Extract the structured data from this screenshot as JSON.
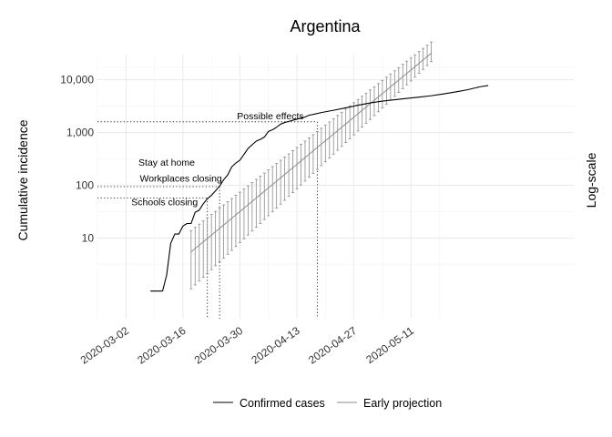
{
  "chart_data": {
    "type": "line",
    "title": "Argentina",
    "xlabel": "",
    "ylabel": "Cumulative incidence",
    "right_label": "Log-scale",
    "y_scale": "log10",
    "ylim": [
      0.3,
      30000
    ],
    "xlim": [
      "2020-02-24",
      "2020-06-20"
    ],
    "grid": true,
    "y_ticks": [
      {
        "value": 10,
        "label": "10"
      },
      {
        "value": 100,
        "label": "100"
      },
      {
        "value": 1000,
        "label": "1,000"
      },
      {
        "value": 10000,
        "label": "10,000"
      }
    ],
    "x_ticks": [
      {
        "day": 7,
        "label": "2020-03-02"
      },
      {
        "day": 21,
        "label": "2020-03-16"
      },
      {
        "day": 35,
        "label": "2020-03-30"
      },
      {
        "day": 49,
        "label": "2020-04-13"
      },
      {
        "day": 63,
        "label": "2020-04-27"
      },
      {
        "day": 77,
        "label": "2020-05-11"
      }
    ],
    "series": [
      {
        "name": "Confirmed cases",
        "color": "#000000",
        "points": [
          [
            13,
            1
          ],
          [
            14,
            1
          ],
          [
            15,
            1
          ],
          [
            16,
            1
          ],
          [
            17,
            2
          ],
          [
            18,
            8
          ],
          [
            19,
            12
          ],
          [
            20,
            12
          ],
          [
            21,
            17
          ],
          [
            22,
            19
          ],
          [
            23,
            19
          ],
          [
            24,
            31
          ],
          [
            25,
            34
          ],
          [
            26,
            45
          ],
          [
            27,
            56
          ],
          [
            28,
            65
          ],
          [
            29,
            79
          ],
          [
            30,
            97
          ],
          [
            31,
            128
          ],
          [
            32,
            158
          ],
          [
            33,
            225
          ],
          [
            34,
            266
          ],
          [
            35,
            301
          ],
          [
            36,
            387
          ],
          [
            37,
            502
          ],
          [
            38,
            589
          ],
          [
            39,
            690
          ],
          [
            40,
            745
          ],
          [
            41,
            820
          ],
          [
            42,
            1054
          ],
          [
            43,
            1133
          ],
          [
            44,
            1265
          ],
          [
            45,
            1451
          ],
          [
            46,
            1554
          ],
          [
            47,
            1628
          ],
          [
            48,
            1715
          ],
          [
            49,
            1795
          ],
          [
            50,
            1894
          ],
          [
            51,
            1975
          ],
          [
            52,
            2142
          ],
          [
            53,
            2208
          ],
          [
            55,
            2400
          ],
          [
            58,
            2650
          ],
          [
            61,
            2950
          ],
          [
            64,
            3300
          ],
          [
            67,
            3650
          ],
          [
            70,
            3950
          ],
          [
            73,
            4200
          ],
          [
            76,
            4450
          ],
          [
            79,
            4700
          ],
          [
            82,
            5000
          ],
          [
            85,
            5400
          ],
          [
            88,
            5900
          ],
          [
            91,
            6500
          ],
          [
            94,
            7400
          ],
          [
            96,
            7800
          ]
        ]
      },
      {
        "name": "Early projection",
        "color": "#8c8c8c",
        "center_start": {
          "day": 23,
          "value": 5.5
        },
        "center_end": {
          "day": 82,
          "value": 32000
        },
        "error_start": {
          "lo": 1.1,
          "hi": 14
        },
        "error_end": {
          "lo": 22000,
          "hi": 52000
        },
        "day_range": [
          23,
          82
        ]
      }
    ],
    "vlines": [
      {
        "day": 27,
        "value": 58
      },
      {
        "day": 30,
        "value": 95
      },
      {
        "day": 54,
        "value": 1600
      }
    ],
    "annotations": [
      {
        "text": "Possible effects",
        "day": 42.5,
        "value": 1600
      },
      {
        "text": "Stay at home",
        "day": 17,
        "value": 210
      },
      {
        "text": "Workplaces closing",
        "day": 20.5,
        "value": 104
      },
      {
        "text": "Schools closing",
        "day": 16.5,
        "value": 37
      }
    ],
    "legend": {
      "position": "bottom",
      "items": [
        {
          "label": "Confirmed cases",
          "color": "#000000"
        },
        {
          "label": "Early projection",
          "color": "#8c8c8c"
        }
      ]
    }
  }
}
